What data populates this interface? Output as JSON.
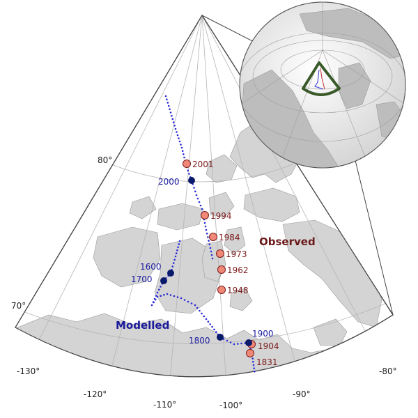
{
  "map": {
    "region_labels": {
      "observed": "Observed",
      "modelled": "Modelled"
    },
    "latitude_labels": [
      "80°",
      "70°"
    ],
    "longitude_labels": [
      "-130°",
      "-120°",
      "-110°",
      "-100°",
      "-90°",
      "-80°"
    ],
    "observed_poles": [
      {
        "year": "2001"
      },
      {
        "year": "1994"
      },
      {
        "year": "1984"
      },
      {
        "year": "1973"
      },
      {
        "year": "1962"
      },
      {
        "year": "1948"
      },
      {
        "year": "1904"
      },
      {
        "year": "1831"
      }
    ],
    "modelled_poles": [
      {
        "year": "2000"
      },
      {
        "year": "1600"
      },
      {
        "year": "1700"
      },
      {
        "year": "1800"
      },
      {
        "year": "1900"
      }
    ],
    "colors": {
      "observed_fill": "#f08878",
      "observed_label": "#7a1a1a",
      "modelled_fill": "#0a1a6b",
      "modelled_label": "#1a1aa0",
      "model_track": "#2b2bd6",
      "land": "#d4d4d4",
      "sea": "#ffffff",
      "graticule": "#b5b5b5",
      "inset_frame": "#3a5a2a"
    },
    "inset": {
      "type": "globe-locator"
    }
  }
}
